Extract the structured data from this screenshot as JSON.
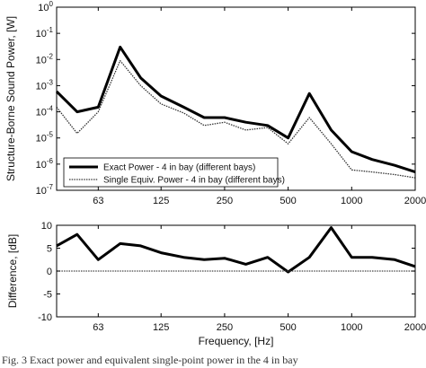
{
  "chart_data": [
    {
      "type": "line",
      "title": "",
      "xlabel": "",
      "ylabel": "Structure-Borne Sound Power, [W]",
      "xscale": "log",
      "yscale": "log",
      "xlim": [
        40,
        2000
      ],
      "ylim": [
        1e-07,
        1
      ],
      "x_ticks": [
        63,
        125,
        250,
        500,
        1000,
        2000
      ],
      "x_tick_labels": [
        "63",
        "125",
        "250",
        "500",
        "1000",
        "2000"
      ],
      "y_ticks": [
        1e-07,
        1e-06,
        1e-05,
        0.0001,
        0.001,
        0.01,
        0.1,
        1
      ],
      "y_tick_labels": [
        {
          "base": "10",
          "exp": "-7"
        },
        {
          "base": "10",
          "exp": "-6"
        },
        {
          "base": "10",
          "exp": "-5"
        },
        {
          "base": "10",
          "exp": "-4"
        },
        {
          "base": "10",
          "exp": "-3"
        },
        {
          "base": "10",
          "exp": "-2"
        },
        {
          "base": "10",
          "exp": "-1"
        },
        {
          "base": "10",
          "exp": "0"
        }
      ],
      "grid": false,
      "legend": "bottom-left",
      "x": [
        40,
        50,
        63,
        80,
        100,
        125,
        160,
        200,
        250,
        315,
        400,
        500,
        630,
        800,
        1000,
        1250,
        1600,
        2000
      ],
      "series": [
        {
          "name": "Exact Power - 4 in bay (different bays)",
          "style": "thick-solid",
          "color": "#000000",
          "values": [
            0.0006,
            0.0001,
            0.00015,
            0.03,
            0.002,
            0.0004,
            0.00015,
            6e-05,
            6e-05,
            4e-05,
            3e-05,
            1e-05,
            0.0005,
            2e-05,
            3e-06,
            1.5e-06,
            9e-07,
            5e-07
          ]
        },
        {
          "name": "Single Equiv. Power - 4  in bay (different bays)",
          "style": "thin-dotted",
          "color": "#333333",
          "values": [
            0.00015,
            1.5e-05,
            0.0001,
            0.009,
            0.001,
            0.0002,
            9e-05,
            3e-05,
            4e-05,
            2e-05,
            2.5e-05,
            6e-06,
            6e-05,
            6e-06,
            6e-07,
            5e-07,
            4e-07,
            3e-07
          ]
        }
      ]
    },
    {
      "type": "line",
      "title": "",
      "xlabel": "Frequency, [Hz]",
      "ylabel": "Difference, [dB]",
      "xscale": "log",
      "xlim": [
        40,
        2000
      ],
      "ylim": [
        -10,
        10
      ],
      "x_ticks": [
        63,
        125,
        250,
        500,
        1000,
        2000
      ],
      "x_tick_labels": [
        "63",
        "125",
        "250",
        "500",
        "1000",
        "2000"
      ],
      "y_ticks": [
        -10,
        -5,
        0,
        5,
        10
      ],
      "y_tick_labels": [
        "-10",
        "-5",
        "0",
        "5",
        "10"
      ],
      "grid": false,
      "x": [
        40,
        50,
        63,
        80,
        100,
        125,
        160,
        200,
        250,
        315,
        400,
        500,
        630,
        800,
        1000,
        1250,
        1600,
        2000
      ],
      "series": [
        {
          "style": "thick-solid",
          "color": "#000000",
          "values": [
            5.5,
            8.0,
            2.5,
            6.0,
            5.5,
            4.0,
            3.0,
            2.5,
            2.8,
            1.5,
            3.0,
            -0.2,
            3.0,
            9.5,
            3.0,
            3.0,
            2.5,
            1.0
          ]
        },
        {
          "style": "thin-dotted",
          "color": "#444444",
          "values": [
            0,
            0,
            0,
            0,
            0,
            0,
            0,
            0,
            0,
            0,
            0,
            0,
            0,
            0,
            0,
            0,
            0,
            0
          ]
        }
      ]
    }
  ],
  "caption": "Fig. 3 Exact power and equivalent single-point power in the 4 in bay"
}
